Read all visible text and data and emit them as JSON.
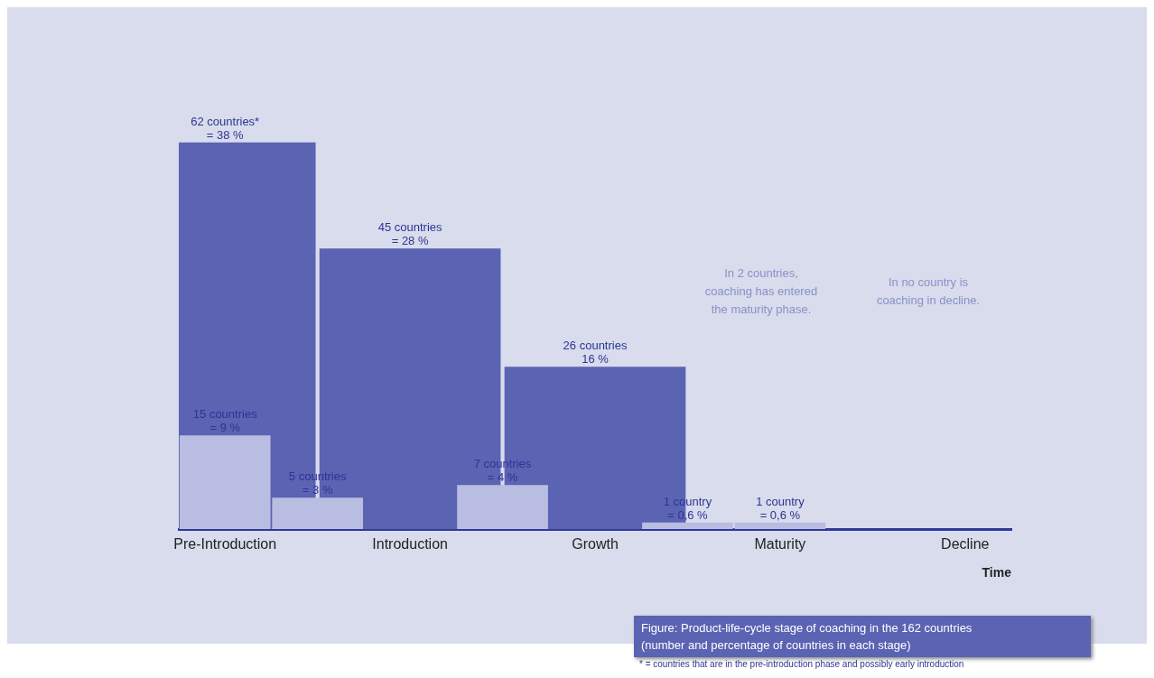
{
  "chart_data": {
    "type": "bar",
    "xlabel": "Time",
    "categories": [
      "Pre-Introduction",
      null,
      "Introduction",
      null,
      "Growth",
      null,
      "Maturity",
      null,
      "Decline"
    ],
    "series": [
      {
        "color": "#5b63b3",
        "values": [
          62,
          null,
          45,
          null,
          26,
          null,
          null,
          null,
          null
        ],
        "value_labels": [
          "62 countries*\n= 38 %",
          null,
          "45 countries\n= 28 %",
          null,
          "26 countries\n16 %",
          null,
          null,
          null,
          null
        ]
      },
      {
        "color": "#b9bde2",
        "values": [
          15,
          5,
          null,
          7,
          null,
          1,
          1,
          null,
          null
        ],
        "value_labels": [
          "15 countries\n= 9 %",
          "5 countries\n= 3 %",
          null,
          "7 countries\n= 4 %",
          null,
          "1 country\n= 0,6 %",
          "1 country\n= 0,6 %",
          null,
          null
        ]
      }
    ],
    "annotations": [
      "In 2 countries,\ncoaching has entered\nthe maturity phase.",
      "In no country is\ncoaching in decline.",
      "Figure:  Product-life-cycle stage of coaching in the 162 countries\n(number and percentage of countries in each stage)",
      "* = countries that are in the pre-introduction phase and possibly early introduction"
    ],
    "grid": false,
    "legend": false
  }
}
